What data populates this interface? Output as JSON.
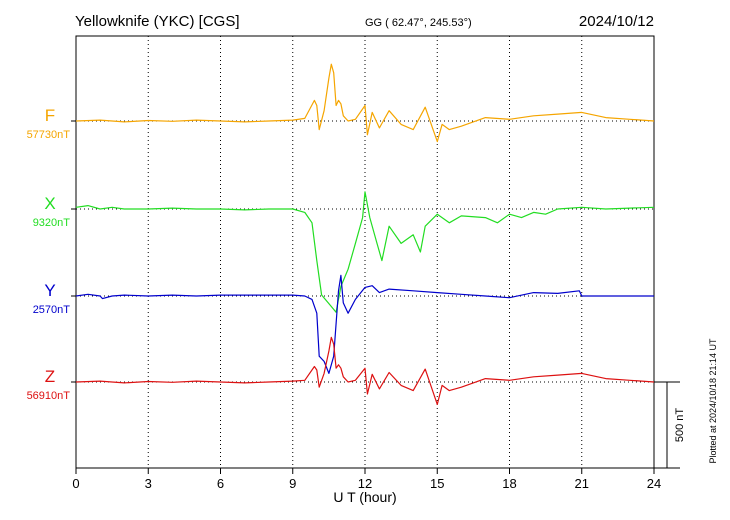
{
  "header": {
    "station": "Yellowknife (YKC)  [CGS]",
    "coords": "GG ( 62.47°, 245.53°)",
    "date": "2024/10/12"
  },
  "footer": {
    "plotted": "Plotted at 2024/10/18 21:14 UT"
  },
  "scale_bar": {
    "label": "500 nT",
    "value_nT": 500
  },
  "chart_data": {
    "type": "line",
    "xlabel": "U T (hour)",
    "xlim": [
      0,
      24
    ],
    "xticks": [
      0,
      3,
      6,
      9,
      12,
      15,
      18,
      21,
      24
    ],
    "grid": true,
    "series": [
      {
        "name": "F",
        "baseline_label": "57730nT",
        "color": "#f5a500",
        "x": [
          0,
          1,
          2,
          3,
          4,
          5,
          6,
          7,
          8,
          9,
          9.5,
          9.9,
          10.0,
          10.1,
          10.3,
          10.5,
          10.6,
          10.7,
          10.8,
          10.9,
          11.0,
          11.1,
          11.3,
          11.6,
          12.0,
          12.1,
          12.3,
          12.6,
          13.0,
          13.5,
          14.0,
          14.5,
          15.0,
          15.2,
          15.5,
          16,
          17,
          18,
          19,
          20,
          21,
          22,
          23,
          24
        ],
        "values": [
          0,
          5,
          -5,
          3,
          -2,
          5,
          0,
          -5,
          0,
          5,
          15,
          120,
          90,
          -50,
          60,
          250,
          330,
          280,
          90,
          120,
          100,
          30,
          0,
          10,
          90,
          -80,
          50,
          -40,
          60,
          -20,
          -50,
          80,
          -120,
          -20,
          -50,
          -30,
          20,
          10,
          30,
          40,
          50,
          20,
          10,
          0
        ]
      },
      {
        "name": "X",
        "baseline_label": "9320nT",
        "color": "#22dd22",
        "x": [
          0,
          0.5,
          1,
          1.5,
          2,
          3,
          4,
          5,
          6,
          7,
          8,
          9,
          9.5,
          9.8,
          10.0,
          10.2,
          10.5,
          10.8,
          11.0,
          11.3,
          11.6,
          11.9,
          12.0,
          12.2,
          12.5,
          12.7,
          13.0,
          13.5,
          14.0,
          14.3,
          14.5,
          15.0,
          15.5,
          16,
          17,
          17.5,
          18,
          18.5,
          19,
          19.5,
          20,
          21,
          22,
          23,
          24
        ],
        "values": [
          10,
          20,
          0,
          10,
          0,
          0,
          5,
          0,
          0,
          -5,
          0,
          0,
          -20,
          -80,
          -300,
          -500,
          -550,
          -600,
          -450,
          -350,
          -200,
          -50,
          100,
          -50,
          -200,
          -300,
          -100,
          -200,
          -150,
          -250,
          -100,
          -30,
          -80,
          -40,
          -50,
          -80,
          -30,
          -50,
          -20,
          -30,
          0,
          10,
          0,
          5,
          10
        ]
      },
      {
        "name": "Y",
        "baseline_label": "2570nT",
        "color": "#0000cc",
        "x": [
          0,
          0.5,
          1,
          1.1,
          1.5,
          2,
          3,
          4,
          5,
          6,
          7,
          8,
          9,
          9.5,
          9.8,
          10.0,
          10.1,
          10.3,
          10.5,
          10.7,
          10.9,
          11.0,
          11.1,
          11.3,
          11.6,
          12.0,
          12.3,
          12.6,
          13.0,
          14.0,
          15.0,
          16,
          17,
          18,
          19,
          20,
          20.9,
          21,
          22,
          23,
          24
        ],
        "values": [
          0,
          10,
          0,
          -15,
          0,
          5,
          0,
          5,
          0,
          5,
          5,
          5,
          5,
          0,
          -20,
          -100,
          -350,
          -380,
          -450,
          -350,
          30,
          120,
          -40,
          -100,
          -20,
          50,
          60,
          20,
          40,
          30,
          20,
          10,
          0,
          -10,
          20,
          15,
          30,
          0,
          0,
          0,
          0
        ]
      },
      {
        "name": "Z",
        "baseline_label": "56910nT",
        "color": "#dd1111",
        "x": [
          0,
          1,
          2,
          3,
          4,
          5,
          6,
          7,
          8,
          9,
          9.5,
          9.9,
          10.0,
          10.1,
          10.3,
          10.5,
          10.6,
          10.7,
          10.8,
          10.9,
          11.0,
          11.1,
          11.3,
          11.6,
          12.0,
          12.1,
          12.3,
          12.6,
          13.0,
          13.5,
          14.0,
          14.5,
          15.0,
          15.2,
          15.5,
          16,
          17,
          18,
          19,
          20,
          21,
          22,
          23,
          24
        ],
        "values": [
          0,
          5,
          -5,
          3,
          -2,
          5,
          0,
          -5,
          0,
          5,
          10,
          90,
          70,
          -30,
          50,
          180,
          260,
          220,
          80,
          100,
          80,
          30,
          0,
          10,
          80,
          -70,
          45,
          -40,
          55,
          -20,
          -50,
          75,
          -130,
          -20,
          -50,
          -30,
          20,
          10,
          30,
          40,
          50,
          20,
          10,
          0
        ]
      }
    ]
  }
}
